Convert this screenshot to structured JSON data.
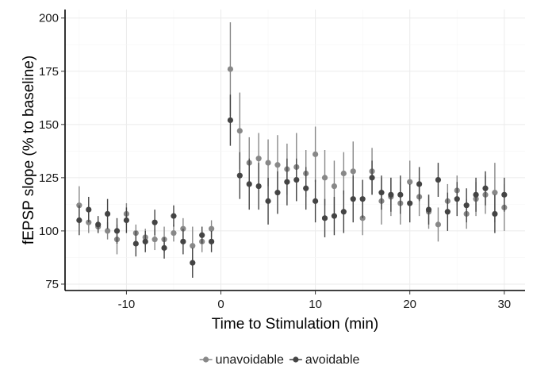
{
  "chart_data": {
    "type": "scatter",
    "xlabel": "Time to Stimulation (min)",
    "ylabel": "fEPSP slope (% to baseline)",
    "xlim": [
      -16.5,
      32.2
    ],
    "ylim": [
      72,
      204
    ],
    "xticks": [
      -10,
      0,
      10,
      20,
      30
    ],
    "xtick_labels": [
      "-10",
      "0",
      "10",
      "20",
      "30"
    ],
    "yticks": [
      75,
      100,
      125,
      150,
      175,
      200
    ],
    "ytick_labels": [
      "75",
      "100",
      "125",
      "150",
      "175",
      "200"
    ],
    "grid": true,
    "legend_position": "bottom",
    "error_bars": true,
    "series": [
      {
        "name": "unavoidable",
        "color": "#888888",
        "x": [
          -15,
          -14,
          -13,
          -12,
          -11,
          -10,
          -9,
          -8,
          -7,
          -6,
          -5,
          -4,
          -3,
          -2,
          -1,
          1,
          2,
          3,
          4,
          5,
          6,
          7,
          8,
          9,
          10,
          11,
          12,
          13,
          14,
          15,
          16,
          17,
          18,
          19,
          20,
          21,
          22,
          23,
          24,
          25,
          26,
          27,
          28,
          29,
          30
        ],
        "y": [
          112,
          104,
          102,
          100,
          96,
          108,
          99,
          97,
          96,
          96,
          99,
          101,
          93,
          95,
          101,
          176,
          147,
          132,
          134,
          132,
          131,
          129,
          130,
          127,
          136,
          125,
          121,
          127,
          128,
          106,
          128,
          114,
          116,
          113,
          123,
          116,
          109,
          103,
          114,
          119,
          108,
          115,
          117,
          118,
          111
        ],
        "err": [
          9,
          5,
          3,
          4,
          7,
          5,
          4,
          4,
          5,
          6,
          4,
          5,
          9,
          5,
          4,
          22,
          18,
          12,
          12,
          11,
          14,
          12,
          16,
          11,
          13,
          13,
          12,
          10,
          14,
          8,
          11,
          11,
          9,
          10,
          10,
          9,
          8,
          8,
          8,
          7,
          7,
          8,
          9,
          14,
          11
        ]
      },
      {
        "name": "avoidable",
        "color": "#444444",
        "x": [
          -15,
          -14,
          -13,
          -12,
          -11,
          -10,
          -9,
          -8,
          -7,
          -6,
          -5,
          -4,
          -3,
          -2,
          -1,
          1,
          2,
          3,
          4,
          5,
          6,
          7,
          8,
          9,
          10,
          11,
          12,
          13,
          14,
          15,
          16,
          17,
          18,
          19,
          20,
          21,
          22,
          23,
          24,
          25,
          26,
          27,
          28,
          29,
          30
        ],
        "y": [
          105,
          110,
          103,
          108,
          100,
          105,
          94,
          95,
          104,
          92,
          107,
          95,
          85,
          98,
          95,
          152,
          126,
          122,
          121,
          114,
          118,
          123,
          124,
          120,
          114,
          106,
          107,
          109,
          115,
          115,
          125,
          118,
          117,
          117,
          113,
          122,
          110,
          124,
          109,
          115,
          112,
          117,
          120,
          108,
          117
        ],
        "err": [
          7,
          6,
          4,
          7,
          6,
          6,
          6,
          5,
          6,
          5,
          5,
          6,
          7,
          4,
          5,
          12,
          11,
          12,
          11,
          11,
          10,
          11,
          10,
          10,
          10,
          9,
          9,
          10,
          11,
          9,
          8,
          8,
          8,
          9,
          9,
          8,
          7,
          8,
          9,
          8,
          8,
          8,
          8,
          9,
          8
        ]
      }
    ]
  }
}
